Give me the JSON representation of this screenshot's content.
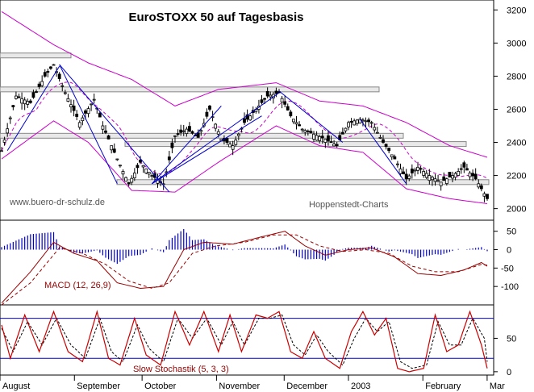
{
  "chart_data": {
    "type": "candlestick",
    "title": "EuroSTOXX 50 auf Tagesbasis",
    "watermark_left": "www.buero-dr-schulz.de",
    "watermark_right": "Hoppenstedt-Charts",
    "price_panel": {
      "yticks": [
        2000,
        2200,
        2400,
        2600,
        2800,
        3000,
        3200
      ],
      "ylim": [
        1930,
        3260
      ],
      "close_waypoints": [
        [
          0,
          2350
        ],
        [
          5,
          2680
        ],
        [
          10,
          2640
        ],
        [
          15,
          2800
        ],
        [
          18,
          2870
        ],
        [
          22,
          2700
        ],
        [
          27,
          2520
        ],
        [
          32,
          2660
        ],
        [
          35,
          2500
        ],
        [
          40,
          2300
        ],
        [
          44,
          2150
        ],
        [
          48,
          2280
        ],
        [
          52,
          2200
        ],
        [
          56,
          2150
        ],
        [
          60,
          2440
        ],
        [
          64,
          2480
        ],
        [
          68,
          2430
        ],
        [
          72,
          2600
        ],
        [
          76,
          2420
        ],
        [
          80,
          2380
        ],
        [
          84,
          2520
        ],
        [
          88,
          2600
        ],
        [
          92,
          2680
        ],
        [
          96,
          2700
        ],
        [
          100,
          2560
        ],
        [
          104,
          2480
        ],
        [
          108,
          2450
        ],
        [
          112,
          2420
        ],
        [
          116,
          2380
        ],
        [
          120,
          2520
        ],
        [
          124,
          2540
        ],
        [
          128,
          2520
        ],
        [
          132,
          2400
        ],
        [
          136,
          2300
        ],
        [
          140,
          2180
        ],
        [
          144,
          2250
        ],
        [
          148,
          2200
        ],
        [
          152,
          2160
        ],
        [
          156,
          2200
        ],
        [
          160,
          2250
        ],
        [
          164,
          2180
        ],
        [
          168,
          2060
        ]
      ],
      "resistance_bands": [
        2925,
        2720,
        2440,
        2390,
        2160
      ],
      "bollinger_upper_waypoints": [
        [
          0,
          3190
        ],
        [
          18,
          2990
        ],
        [
          30,
          2880
        ],
        [
          45,
          2780
        ],
        [
          60,
          2620
        ],
        [
          75,
          2720
        ],
        [
          95,
          2760
        ],
        [
          110,
          2650
        ],
        [
          125,
          2620
        ],
        [
          140,
          2520
        ],
        [
          155,
          2380
        ],
        [
          168,
          2310
        ]
      ],
      "bollinger_lower_waypoints": [
        [
          0,
          2300
        ],
        [
          18,
          2530
        ],
        [
          30,
          2400
        ],
        [
          45,
          2110
        ],
        [
          60,
          2100
        ],
        [
          75,
          2280
        ],
        [
          95,
          2500
        ],
        [
          110,
          2380
        ],
        [
          125,
          2340
        ],
        [
          140,
          2120
        ],
        [
          155,
          2060
        ],
        [
          168,
          2030
        ]
      ]
    },
    "macd_panel": {
      "label": "MACD (12, 26,9)",
      "yticks": [
        50,
        0,
        -50,
        -100
      ],
      "ylim": [
        -150,
        80
      ],
      "macd_waypoints": [
        [
          0,
          -145
        ],
        [
          10,
          -60
        ],
        [
          18,
          20
        ],
        [
          25,
          -10
        ],
        [
          33,
          -30
        ],
        [
          40,
          -90
        ],
        [
          48,
          -105
        ],
        [
          56,
          -100
        ],
        [
          63,
          0
        ],
        [
          70,
          20
        ],
        [
          80,
          15
        ],
        [
          90,
          35
        ],
        [
          98,
          50
        ],
        [
          105,
          10
        ],
        [
          112,
          -15
        ],
        [
          120,
          0
        ],
        [
          128,
          5
        ],
        [
          136,
          -20
        ],
        [
          144,
          -65
        ],
        [
          152,
          -70
        ],
        [
          160,
          -55
        ],
        [
          166,
          -35
        ],
        [
          168,
          -45
        ]
      ],
      "signal_waypoints": [
        [
          0,
          -150
        ],
        [
          10,
          -90
        ],
        [
          20,
          5
        ],
        [
          28,
          -10
        ],
        [
          36,
          -40
        ],
        [
          44,
          -85
        ],
        [
          52,
          -105
        ],
        [
          58,
          -90
        ],
        [
          66,
          -10
        ],
        [
          74,
          10
        ],
        [
          84,
          20
        ],
        [
          94,
          40
        ],
        [
          102,
          40
        ],
        [
          110,
          10
        ],
        [
          118,
          -5
        ],
        [
          126,
          0
        ],
        [
          134,
          -10
        ],
        [
          142,
          -45
        ],
        [
          150,
          -60
        ],
        [
          158,
          -60
        ],
        [
          166,
          -40
        ],
        [
          168,
          -42
        ]
      ]
    },
    "stochastic_panel": {
      "label": "Slow Stochastik (5, 3, 3)",
      "yticks": [
        50,
        0
      ],
      "ylim": [
        -5,
        100
      ],
      "levels": [
        80,
        20
      ],
      "k_waypoints": [
        [
          0,
          70
        ],
        [
          3,
          20
        ],
        [
          8,
          85
        ],
        [
          13,
          30
        ],
        [
          18,
          90
        ],
        [
          23,
          30
        ],
        [
          28,
          15
        ],
        [
          33,
          90
        ],
        [
          37,
          20
        ],
        [
          41,
          10
        ],
        [
          46,
          80
        ],
        [
          50,
          25
        ],
        [
          55,
          10
        ],
        [
          60,
          90
        ],
        [
          65,
          40
        ],
        [
          70,
          90
        ],
        [
          75,
          30
        ],
        [
          79,
          85
        ],
        [
          83,
          30
        ],
        [
          88,
          85
        ],
        [
          92,
          80
        ],
        [
          96,
          90
        ],
        [
          100,
          30
        ],
        [
          104,
          20
        ],
        [
          108,
          60
        ],
        [
          112,
          20
        ],
        [
          117,
          5
        ],
        [
          121,
          60
        ],
        [
          125,
          90
        ],
        [
          129,
          55
        ],
        [
          133,
          80
        ],
        [
          137,
          5
        ],
        [
          141,
          0
        ],
        [
          146,
          5
        ],
        [
          150,
          85
        ],
        [
          154,
          30
        ],
        [
          158,
          40
        ],
        [
          162,
          90
        ],
        [
          166,
          40
        ],
        [
          168,
          5
        ]
      ],
      "d_waypoints": [
        [
          0,
          65
        ],
        [
          4,
          30
        ],
        [
          9,
          75
        ],
        [
          14,
          40
        ],
        [
          19,
          80
        ],
        [
          24,
          40
        ],
        [
          29,
          20
        ],
        [
          34,
          80
        ],
        [
          38,
          30
        ],
        [
          42,
          15
        ],
        [
          47,
          70
        ],
        [
          51,
          35
        ],
        [
          56,
          15
        ],
        [
          61,
          80
        ],
        [
          66,
          50
        ],
        [
          71,
          80
        ],
        [
          76,
          40
        ],
        [
          80,
          75
        ],
        [
          84,
          40
        ],
        [
          89,
          80
        ],
        [
          93,
          80
        ],
        [
          97,
          85
        ],
        [
          101,
          40
        ],
        [
          105,
          25
        ],
        [
          109,
          55
        ],
        [
          113,
          30
        ],
        [
          118,
          10
        ],
        [
          122,
          50
        ],
        [
          126,
          80
        ],
        [
          130,
          60
        ],
        [
          134,
          75
        ],
        [
          138,
          15
        ],
        [
          142,
          5
        ],
        [
          147,
          10
        ],
        [
          151,
          75
        ],
        [
          155,
          40
        ],
        [
          159,
          40
        ],
        [
          163,
          80
        ],
        [
          167,
          50
        ],
        [
          168,
          15
        ]
      ]
    },
    "x_axis": {
      "labels": [
        {
          "text": "August",
          "idx": 0
        },
        {
          "text": "September",
          "idx": 44
        },
        {
          "text": "October",
          "idx": 84
        },
        {
          "text": "November",
          "idx": 128
        },
        {
          "text": "December",
          "idx": 168
        },
        {
          "text": "2003",
          "idx": 206
        },
        {
          "text": "February",
          "idx": 250
        },
        {
          "text": "Mar",
          "idx": 288
        }
      ],
      "total_days": 290
    }
  },
  "colors": {
    "candle": "#000000",
    "bollinger": "#cc00cc",
    "moving_average": "#cc00cc",
    "trendline": "#0000cc",
    "band_fill": "#e8e8e8",
    "band_stroke": "#888888",
    "macd": "#990000",
    "signal": "#990000",
    "histogram": "#0000cc",
    "stoch_k": "#cc0000",
    "stoch_d": "#000000",
    "stoch_levels": "#0000cc",
    "watermark": "#555555",
    "label_red": "#990000"
  }
}
